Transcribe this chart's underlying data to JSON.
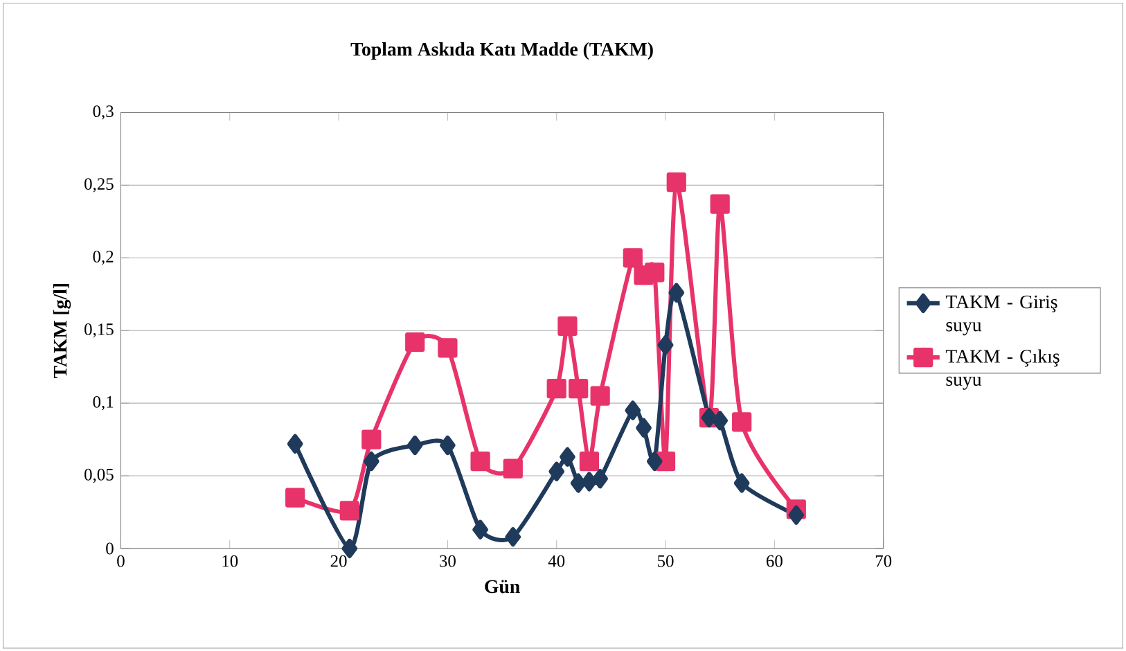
{
  "chart_data": {
    "type": "line",
    "title": "Toplam Askıda Katı Madde (TAKM)",
    "xlabel": "Gün",
    "ylabel": "TAKM [g/l]",
    "xlim": [
      0,
      70
    ],
    "xticks": [
      0,
      10,
      20,
      30,
      40,
      50,
      60,
      70
    ],
    "ylim": [
      0,
      0.3
    ],
    "yticks": [
      {
        "value": 0,
        "label": "0"
      },
      {
        "value": 0.05,
        "label": "0,05"
      },
      {
        "value": 0.1,
        "label": "0,1"
      },
      {
        "value": 0.15,
        "label": "0,15"
      },
      {
        "value": 0.2,
        "label": "0,2"
      },
      {
        "value": 0.25,
        "label": "0,25"
      },
      {
        "value": 0.3,
        "label": "0,3"
      }
    ],
    "grid": "y",
    "legend": "right",
    "line_style": "solid",
    "series": [
      {
        "name": "TAKM - Giriş suyu",
        "color": "#1f3a5a",
        "marker": "diamond",
        "x": [
          16,
          21,
          23,
          27,
          30,
          33,
          36,
          40,
          41,
          42,
          43,
          44,
          47,
          48,
          49,
          50,
          51,
          54,
          55,
          57,
          62
        ],
        "values": [
          0.072,
          0.0,
          0.06,
          0.071,
          0.071,
          0.013,
          0.008,
          0.053,
          0.063,
          0.045,
          0.046,
          0.048,
          0.095,
          0.083,
          0.06,
          0.14,
          0.176,
          0.09,
          0.088,
          0.045,
          0.023
        ]
      },
      {
        "name": "TAKM - Çıkış suyu",
        "color": "#e8336a",
        "marker": "square",
        "x": [
          16,
          21,
          23,
          27,
          30,
          33,
          36,
          40,
          41,
          42,
          43,
          44,
          47,
          48,
          49,
          50,
          51,
          54,
          55,
          57,
          62
        ],
        "values": [
          0.035,
          0.026,
          0.075,
          0.142,
          0.138,
          0.06,
          0.055,
          0.11,
          0.153,
          0.11,
          0.06,
          0.105,
          0.2,
          0.188,
          0.19,
          0.06,
          0.252,
          0.09,
          0.237,
          0.087,
          0.027
        ]
      }
    ]
  }
}
